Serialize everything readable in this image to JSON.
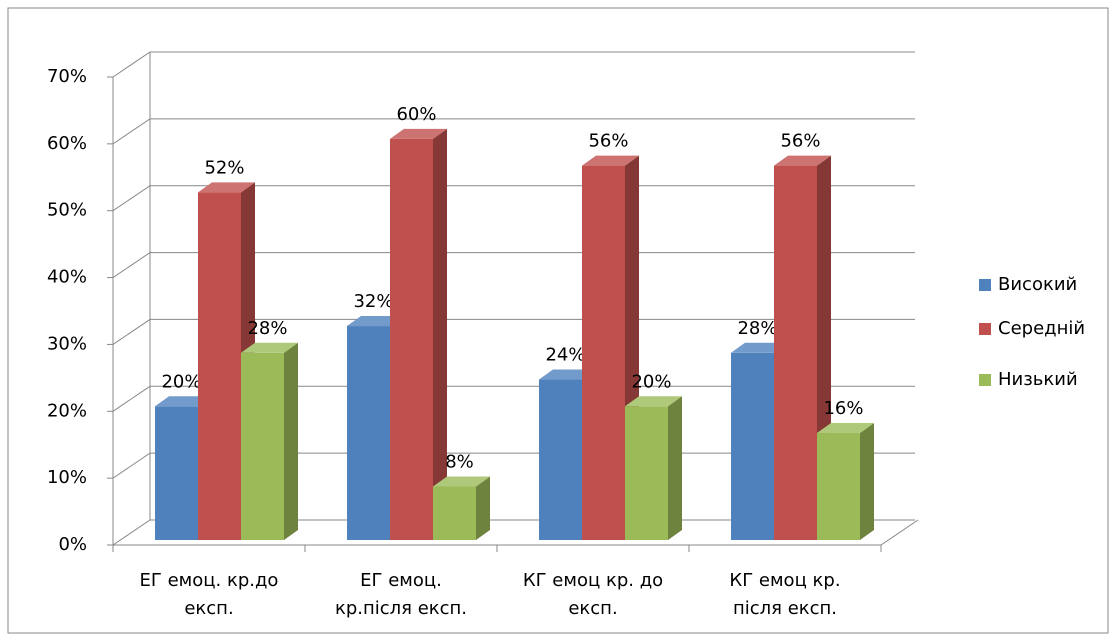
{
  "chart_data": {
    "type": "bar3d",
    "categories": [
      "ЕГ емоц. кр.до\nексп.",
      "ЕГ емоц.\nкр.після експ.",
      "КГ емоц кр. до\nексп.",
      "КГ емоц кр.\nпісля експ."
    ],
    "series": [
      {
        "name": "Високий",
        "color": "#4f81bd",
        "values": [
          20,
          32,
          24,
          28
        ],
        "value_labels": [
          "20%",
          "32%",
          "24%",
          "28%"
        ]
      },
      {
        "name": "Середній",
        "color": "#c0504d",
        "values": [
          52,
          60,
          56,
          56
        ],
        "value_labels": [
          "52%",
          "60%",
          "56%",
          "56%"
        ]
      },
      {
        "name": "Низький",
        "color": "#9bbb59",
        "values": [
          28,
          8,
          20,
          16
        ],
        "value_labels": [
          "28%",
          "8%",
          "20%",
          "16%"
        ]
      }
    ],
    "ylim": [
      0,
      70
    ],
    "yticks": [
      {
        "value": 0,
        "label": "0%"
      },
      {
        "value": 10,
        "label": "10%"
      },
      {
        "value": 20,
        "label": "20%"
      },
      {
        "value": 30,
        "label": "30%"
      },
      {
        "value": 40,
        "label": "40%"
      },
      {
        "value": 50,
        "label": "50%"
      },
      {
        "value": 60,
        "label": "60%"
      },
      {
        "value": 70,
        "label": "70%"
      }
    ],
    "grid": true,
    "legend": "right"
  }
}
